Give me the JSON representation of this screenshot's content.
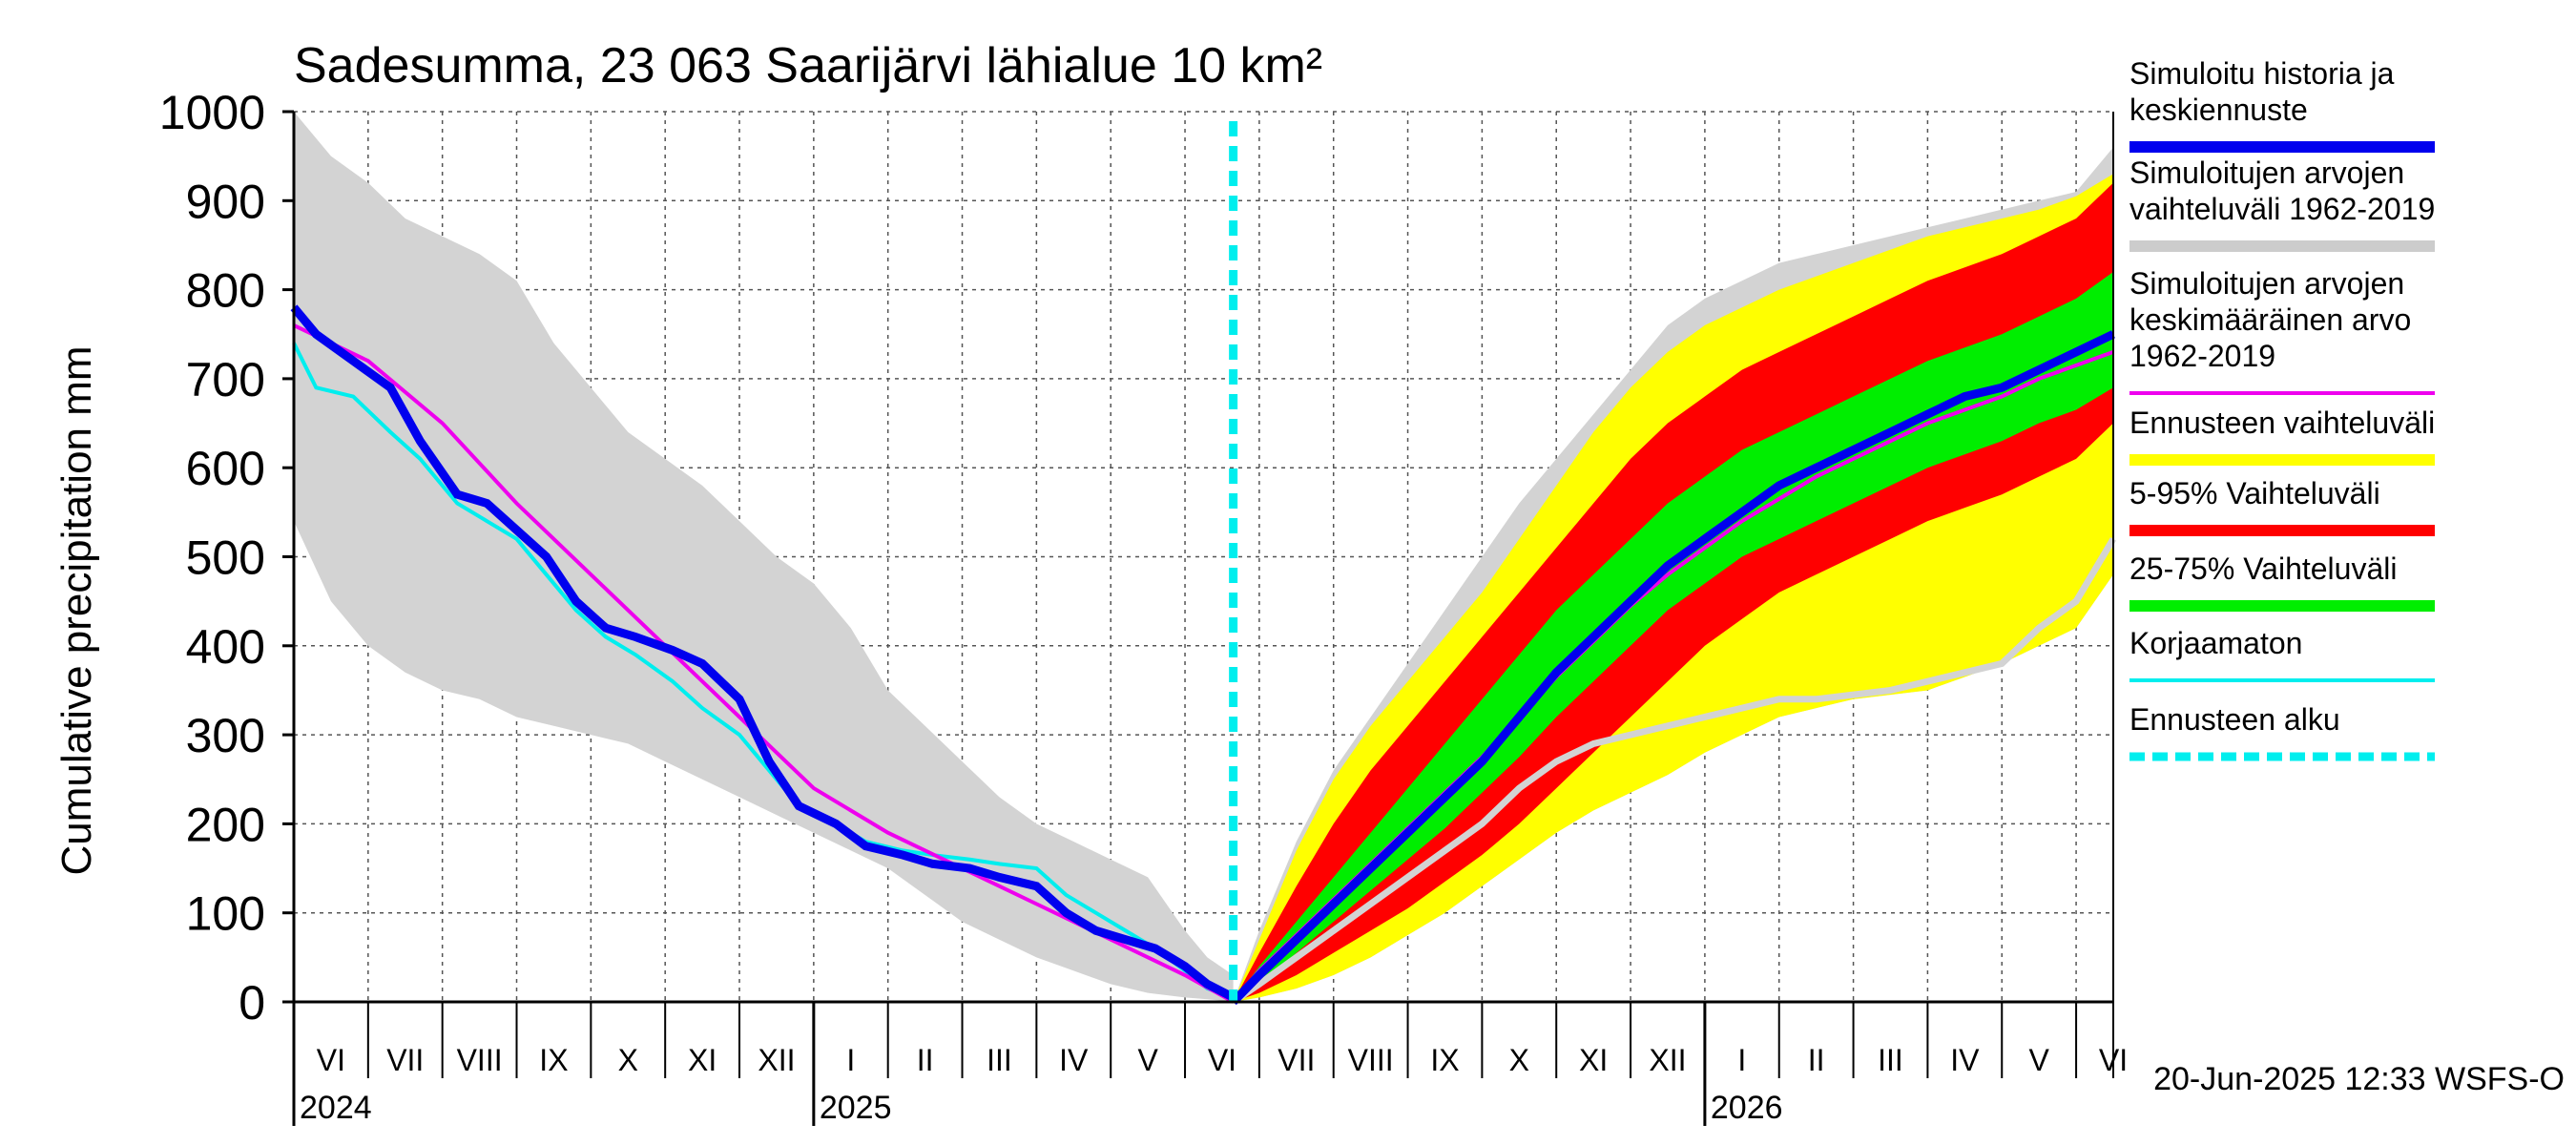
{
  "chart_data": {
    "type": "area",
    "title": "Sadesumma, 23 063 Saarijärvi lähialue 10 km²",
    "ylabel": "Cumulative precipitation   mm",
    "ylim": [
      0,
      1000
    ],
    "yticks": [
      0,
      100,
      200,
      300,
      400,
      500,
      600,
      700,
      800,
      900,
      1000
    ],
    "xlim": [
      0,
      24.5
    ],
    "forecast_start": 12.65,
    "month_labels": [
      "VI",
      "VII",
      "VIII",
      "IX",
      "X",
      "XI",
      "XII",
      "I",
      "II",
      "III",
      "IV",
      "V",
      "VI",
      "VII",
      "VIII",
      "IX",
      "X",
      "XI",
      "XII",
      "I",
      "II",
      "III",
      "IV",
      "V",
      "VI"
    ],
    "year_labels": [
      {
        "label": "2024",
        "at": 0
      },
      {
        "label": "2025",
        "at": 7
      },
      {
        "label": "2026",
        "at": 19
      }
    ],
    "footer": "20-Jun-2025 12:33 WSFS-O",
    "legend": [
      {
        "label": "Simuloitu historia ja\nkeskiennuste",
        "color": "#0000ee",
        "style": "thick"
      },
      {
        "label": "Simuloitujen arvojen\nvaihteluväli 1962-2019",
        "color": "#cccccc",
        "style": "thick"
      },
      {
        "label": "Simuloitujen arvojen\nkeskimääräinen arvo\n   1962-2019",
        "color": "#ee00ee",
        "style": "line"
      },
      {
        "label": "Ennusteen vaihteluväli",
        "color": "#ffff00",
        "style": "thick"
      },
      {
        "label": "5-95% Vaihteluväli",
        "color": "#ff0000",
        "style": "thick"
      },
      {
        "label": "25-75% Vaihteluväli",
        "color": "#00ee00",
        "style": "thick"
      },
      {
        "label": "Korjaamaton",
        "color": "#00eeee",
        "style": "line"
      },
      {
        "label": "Ennusteen alku",
        "color": "#00eeee",
        "style": "dashed"
      }
    ],
    "series": {
      "hist_range_upper": {
        "x": [
          0,
          0.5,
          1,
          1.5,
          2,
          2.5,
          3,
          3.5,
          4,
          4.5,
          5,
          5.5,
          6,
          6.5,
          7,
          7.5,
          8,
          8.5,
          9,
          9.5,
          10,
          10.5,
          11,
          11.5,
          12,
          12.3,
          12.65
        ],
        "y": [
          1000,
          950,
          920,
          880,
          860,
          840,
          810,
          740,
          690,
          640,
          610,
          580,
          540,
          500,
          470,
          420,
          350,
          310,
          270,
          230,
          200,
          180,
          160,
          140,
          80,
          50,
          30
        ]
      },
      "hist_range_lower": {
        "x": [
          0,
          0.5,
          1,
          1.5,
          2,
          2.5,
          3,
          3.5,
          4,
          4.5,
          5,
          5.5,
          6,
          6.5,
          7,
          7.5,
          8,
          8.5,
          9,
          9.5,
          10,
          10.5,
          11,
          11.5,
          12,
          12.3,
          12.65
        ],
        "y": [
          540,
          450,
          400,
          370,
          350,
          340,
          320,
          310,
          300,
          290,
          270,
          250,
          230,
          210,
          190,
          170,
          150,
          120,
          90,
          70,
          50,
          35,
          20,
          10,
          5,
          3,
          0
        ]
      },
      "sim_history": {
        "x": [
          0,
          0.3,
          0.8,
          1.3,
          1.7,
          2.2,
          2.6,
          3,
          3.4,
          3.8,
          4.2,
          4.6,
          5.1,
          5.5,
          6,
          6.4,
          6.8,
          7.3,
          7.7,
          8.2,
          8.6,
          9.1,
          9.5,
          10,
          10.4,
          10.8,
          11.2,
          11.6,
          12,
          12.3,
          12.65
        ],
        "y": [
          780,
          750,
          720,
          690,
          630,
          570,
          560,
          530,
          500,
          450,
          420,
          410,
          395,
          380,
          340,
          270,
          220,
          200,
          175,
          165,
          155,
          150,
          140,
          130,
          100,
          80,
          70,
          60,
          40,
          20,
          5
        ]
      },
      "korjaamaton": {
        "x": [
          0,
          0.3,
          0.8,
          1.3,
          1.7,
          2.2,
          2.6,
          3,
          3.4,
          3.8,
          4.2,
          4.6,
          5.1,
          5.5,
          6,
          6.4,
          6.8,
          7.3,
          7.7,
          8.2,
          8.6,
          9.1,
          9.5,
          10,
          10.4,
          10.8,
          11.2,
          11.6,
          12,
          12.3,
          12.65
        ],
        "y": [
          740,
          690,
          680,
          640,
          610,
          560,
          540,
          520,
          480,
          440,
          410,
          390,
          360,
          330,
          300,
          260,
          220,
          200,
          180,
          170,
          165,
          160,
          155,
          150,
          120,
          100,
          80,
          60,
          35,
          15,
          5
        ]
      },
      "hist_mean": {
        "x": [
          0,
          1,
          2,
          3,
          4,
          5,
          6,
          7,
          8,
          9,
          10,
          11,
          12,
          12.65
        ],
        "y": [
          760,
          720,
          650,
          560,
          480,
          400,
          320,
          240,
          190,
          150,
          110,
          70,
          30,
          0
        ]
      },
      "forecast_x": [
        12.65,
        13,
        13.5,
        14,
        14.5,
        15,
        15.5,
        16,
        16.5,
        17,
        17.5,
        18,
        18.5,
        19,
        19.5,
        20,
        20.5,
        21,
        21.5,
        22,
        22.5,
        23,
        23.5,
        24,
        24.5
      ],
      "range_max": [
        0,
        70,
        170,
        250,
        310,
        360,
        410,
        460,
        520,
        580,
        640,
        690,
        730,
        760,
        780,
        800,
        815,
        830,
        845,
        860,
        870,
        880,
        890,
        905,
        930
      ],
      "p95": [
        0,
        55,
        130,
        200,
        260,
        310,
        360,
        410,
        460,
        510,
        560,
        610,
        650,
        680,
        710,
        730,
        750,
        770,
        790,
        810,
        825,
        840,
        860,
        880,
        920
      ],
      "p75": [
        0,
        40,
        90,
        140,
        190,
        240,
        290,
        340,
        390,
        440,
        480,
        520,
        560,
        590,
        620,
        640,
        660,
        680,
        700,
        720,
        735,
        750,
        770,
        790,
        820
      ],
      "median": [
        0,
        30,
        70,
        110,
        150,
        190,
        230,
        270,
        320,
        370,
        410,
        450,
        490,
        520,
        550,
        580,
        600,
        620,
        640,
        660,
        680,
        690,
        710,
        730,
        750
      ],
      "p25": [
        0,
        20,
        55,
        90,
        125,
        160,
        195,
        235,
        275,
        320,
        360,
        400,
        440,
        470,
        500,
        520,
        540,
        560,
        580,
        600,
        615,
        630,
        650,
        665,
        690
      ],
      "p05": [
        0,
        10,
        30,
        55,
        80,
        105,
        135,
        165,
        200,
        240,
        280,
        320,
        360,
        400,
        430,
        460,
        480,
        500,
        520,
        540,
        555,
        570,
        590,
        610,
        650
      ],
      "range_min": [
        0,
        5,
        15,
        30,
        50,
        75,
        100,
        130,
        160,
        190,
        215,
        235,
        255,
        280,
        300,
        320,
        330,
        340,
        345,
        350,
        365,
        380,
        400,
        420,
        480
      ],
      "forecast_hist_upper": [
        0,
        80,
        180,
        260,
        320,
        380,
        440,
        500,
        560,
        610,
        660,
        710,
        760,
        790,
        810,
        830,
        840,
        850,
        860,
        870,
        880,
        890,
        900,
        910,
        960
      ],
      "forecast_gray_line": [
        0,
        20,
        50,
        80,
        110,
        140,
        170,
        200,
        240,
        270,
        290,
        300,
        310,
        320,
        330,
        340,
        340,
        345,
        350,
        360,
        370,
        380,
        420,
        450,
        520
      ],
      "forecast_mean": [
        0,
        35,
        75,
        115,
        155,
        195,
        235,
        275,
        320,
        365,
        405,
        445,
        480,
        510,
        540,
        565,
        590,
        610,
        630,
        650,
        665,
        680,
        700,
        715,
        730
      ]
    }
  }
}
